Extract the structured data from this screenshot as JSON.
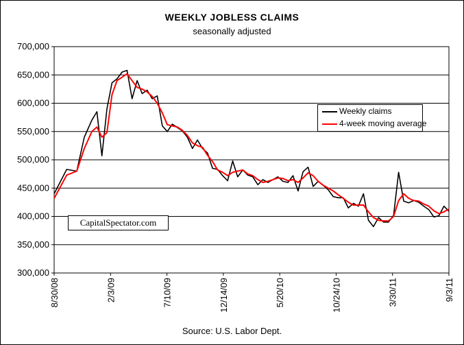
{
  "chart_data": {
    "type": "line",
    "title": "WEEKLY JOBLESS CLAIMS",
    "subtitle": "seasonally adjusted",
    "source": "Source: U.S. Labor Dept.",
    "watermark": "CapitalSpectator.com",
    "legend_position": "right, upper middle",
    "grid": true,
    "ylim": [
      300000,
      700000
    ],
    "yticks": [
      "700,000",
      "650,000",
      "600,000",
      "550,000",
      "500,000",
      "450,000",
      "400,000",
      "350,000",
      "300,000"
    ],
    "ytick_values": [
      700000,
      650000,
      600000,
      550000,
      500000,
      450000,
      400000,
      350000,
      300000
    ],
    "xticks": [
      "8/30/08",
      "2/3/09",
      "7/10/09",
      "12/14/09",
      "5/20/10",
      "10/24/10",
      "3/30/11",
      "9/3/11"
    ],
    "xlim": [
      "2008-08-30",
      "2011-09-03"
    ],
    "series": [
      {
        "name": "Weekly claims",
        "color": "#000000",
        "x": [
          "2008-08-30",
          "2008-10-04",
          "2008-11-01",
          "2008-11-22",
          "2008-12-13",
          "2008-12-27",
          "2009-01-10",
          "2009-01-24",
          "2009-02-07",
          "2009-02-21",
          "2009-03-07",
          "2009-03-21",
          "2009-04-04",
          "2009-04-18",
          "2009-05-02",
          "2009-05-16",
          "2009-05-30",
          "2009-06-13",
          "2009-06-27",
          "2009-07-11",
          "2009-07-25",
          "2009-08-08",
          "2009-08-22",
          "2009-09-05",
          "2009-09-19",
          "2009-10-03",
          "2009-10-17",
          "2009-10-31",
          "2009-11-14",
          "2009-11-28",
          "2009-12-12",
          "2009-12-26",
          "2010-01-09",
          "2010-01-23",
          "2010-02-06",
          "2010-02-20",
          "2010-03-06",
          "2010-03-20",
          "2010-04-03",
          "2010-04-17",
          "2010-05-01",
          "2010-05-15",
          "2010-05-29",
          "2010-06-12",
          "2010-06-26",
          "2010-07-10",
          "2010-07-24",
          "2010-08-07",
          "2010-08-21",
          "2010-09-04",
          "2010-09-18",
          "2010-10-02",
          "2010-10-16",
          "2010-10-30",
          "2010-11-13",
          "2010-11-27",
          "2010-12-11",
          "2010-12-25",
          "2011-01-08",
          "2011-01-22",
          "2011-02-05",
          "2011-02-19",
          "2011-03-05",
          "2011-03-19",
          "2011-04-02",
          "2011-04-16",
          "2011-04-30",
          "2011-05-14",
          "2011-05-28",
          "2011-06-11",
          "2011-06-25",
          "2011-07-09",
          "2011-07-23",
          "2011-08-06",
          "2011-08-20",
          "2011-09-03"
        ],
        "values": [
          440000,
          483000,
          480000,
          540000,
          570000,
          585000,
          507000,
          590000,
          636000,
          643000,
          655000,
          658000,
          608000,
          640000,
          617000,
          623000,
          608000,
          613000,
          560000,
          550000,
          563000,
          557000,
          551000,
          540000,
          520000,
          535000,
          520000,
          512000,
          485000,
          483000,
          472000,
          463000,
          498000,
          470000,
          482000,
          473000,
          470000,
          456000,
          465000,
          460000,
          465000,
          470000,
          462000,
          460000,
          472000,
          445000,
          479000,
          487000,
          453000,
          462000,
          455000,
          447000,
          435000,
          433000,
          433000,
          415000,
          423000,
          418000,
          440000,
          393000,
          382000,
          398000,
          390000,
          390000,
          402000,
          478000,
          427000,
          424000,
          428000,
          425000,
          418000,
          412000,
          399000,
          401000,
          418000,
          409000
        ]
      },
      {
        "name": "4-week moving average",
        "color": "#ff0000",
        "x": [
          "2008-08-30",
          "2008-10-04",
          "2008-11-01",
          "2008-11-22",
          "2008-12-13",
          "2008-12-27",
          "2009-01-10",
          "2009-01-24",
          "2009-02-07",
          "2009-02-21",
          "2009-03-07",
          "2009-03-21",
          "2009-04-04",
          "2009-04-18",
          "2009-05-02",
          "2009-05-16",
          "2009-05-30",
          "2009-06-13",
          "2009-06-27",
          "2009-07-11",
          "2009-07-25",
          "2009-08-08",
          "2009-08-22",
          "2009-09-05",
          "2009-09-19",
          "2009-10-03",
          "2009-10-17",
          "2009-10-31",
          "2009-11-14",
          "2009-11-28",
          "2009-12-12",
          "2009-12-26",
          "2010-01-09",
          "2010-01-23",
          "2010-02-06",
          "2010-02-20",
          "2010-03-06",
          "2010-03-20",
          "2010-04-03",
          "2010-04-17",
          "2010-05-01",
          "2010-05-15",
          "2010-05-29",
          "2010-06-12",
          "2010-06-26",
          "2010-07-10",
          "2010-07-24",
          "2010-08-07",
          "2010-08-21",
          "2010-09-04",
          "2010-09-18",
          "2010-10-02",
          "2010-10-16",
          "2010-10-30",
          "2010-11-13",
          "2010-11-27",
          "2010-12-11",
          "2010-12-25",
          "2011-01-08",
          "2011-01-22",
          "2011-02-05",
          "2011-02-19",
          "2011-03-05",
          "2011-03-19",
          "2011-04-02",
          "2011-04-16",
          "2011-04-30",
          "2011-05-14",
          "2011-05-28",
          "2011-06-11",
          "2011-06-25",
          "2011-07-09",
          "2011-07-23",
          "2011-08-06",
          "2011-08-20",
          "2011-09-03"
        ],
        "values": [
          432000,
          473000,
          480000,
          520000,
          550000,
          558000,
          540000,
          548000,
          615000,
          640000,
          646000,
          652000,
          640000,
          628000,
          625000,
          620000,
          612000,
          600000,
          583000,
          562000,
          560000,
          558000,
          552000,
          543000,
          530000,
          525000,
          522000,
          508000,
          497000,
          482000,
          478000,
          472000,
          478000,
          480000,
          482000,
          475000,
          472000,
          465000,
          460000,
          462000,
          465000,
          468000,
          467000,
          463000,
          465000,
          460000,
          468000,
          477000,
          472000,
          462000,
          455000,
          450000,
          445000,
          438000,
          432000,
          425000,
          420000,
          420000,
          420000,
          408000,
          398000,
          393000,
          392000,
          392000,
          400000,
          428000,
          440000,
          432000,
          428000,
          427000,
          422000,
          418000,
          410000,
          405000,
          408000,
          413000
        ]
      }
    ]
  }
}
